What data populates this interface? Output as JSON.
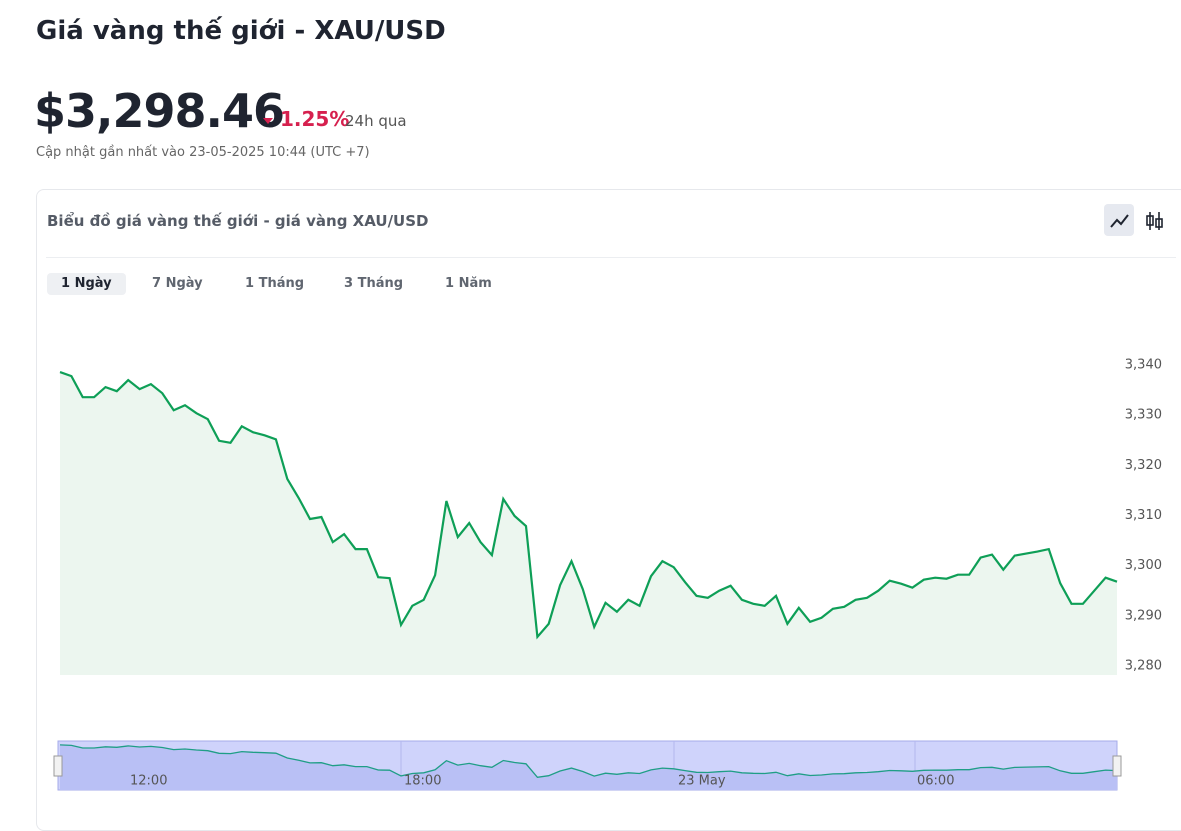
{
  "header": {
    "title": "Giá vàng thế giới - XAU/USD",
    "price": "$3,298.46",
    "change": "1.25%",
    "change_period": "24h qua",
    "updated": "Cập nhật gần nhất vào 23-05-2025 10:44 (UTC +7)"
  },
  "card": {
    "title": "Biểu đồ giá vàng thế giới - giá vàng XAU/USD",
    "tabs": [
      "1 Ngày",
      "7 Ngày",
      "1 Tháng",
      "3 Tháng",
      "1 Năm"
    ],
    "active_tab": 0
  },
  "chart_data": {
    "type": "line",
    "color": "#0e9f57",
    "values": [
      3338.6,
      3337.8,
      3333.6,
      3333.6,
      3335.6,
      3334.8,
      3337.0,
      3335.2,
      3336.2,
      3334.4,
      3331.0,
      3332.0,
      3330.4,
      3329.2,
      3324.9,
      3324.5,
      3327.8,
      3326.6,
      3326.0,
      3325.2,
      3317.3,
      3313.5,
      3309.3,
      3309.7,
      3304.7,
      3306.3,
      3303.3,
      3303.3,
      3297.7,
      3297.5,
      3288.2,
      3292.0,
      3293.2,
      3298.1,
      3312.9,
      3305.7,
      3308.5,
      3304.7,
      3302.1,
      3313.3,
      3309.9,
      3307.9,
      3285.8,
      3288.4,
      3296.1,
      3300.9,
      3295.3,
      3287.8,
      3292.6,
      3290.8,
      3293.2,
      3292.0,
      3297.9,
      3300.9,
      3299.7,
      3296.7,
      3294.0,
      3293.6,
      3295.0,
      3296.0,
      3293.2,
      3292.4,
      3292.0,
      3294.0,
      3288.4,
      3291.6,
      3288.8,
      3289.6,
      3291.4,
      3291.8,
      3293.2,
      3293.6,
      3295.0,
      3297.0,
      3296.4,
      3295.6,
      3297.2,
      3297.6,
      3297.4,
      3298.2,
      3298.2,
      3301.6,
      3302.2,
      3299.2,
      3302.0,
      3302.4,
      3302.8,
      3303.3,
      3296.5,
      3292.4,
      3292.4,
      3295.0,
      3297.6,
      3296.8
    ],
    "ylim": [
      3278.2,
      3345
    ],
    "yticks": [
      {
        "value": 3280,
        "label": "3,280"
      },
      {
        "value": 3290,
        "label": "3,290"
      },
      {
        "value": 3300,
        "label": "3,300"
      },
      {
        "value": 3310,
        "label": "3,310"
      },
      {
        "value": 3320,
        "label": "3,320"
      },
      {
        "value": 3330,
        "label": "3,330"
      },
      {
        "value": 3340,
        "label": "3,340"
      }
    ],
    "navigator_labels": [
      "12:00",
      "18:00",
      "23 May",
      "06:00"
    ]
  }
}
